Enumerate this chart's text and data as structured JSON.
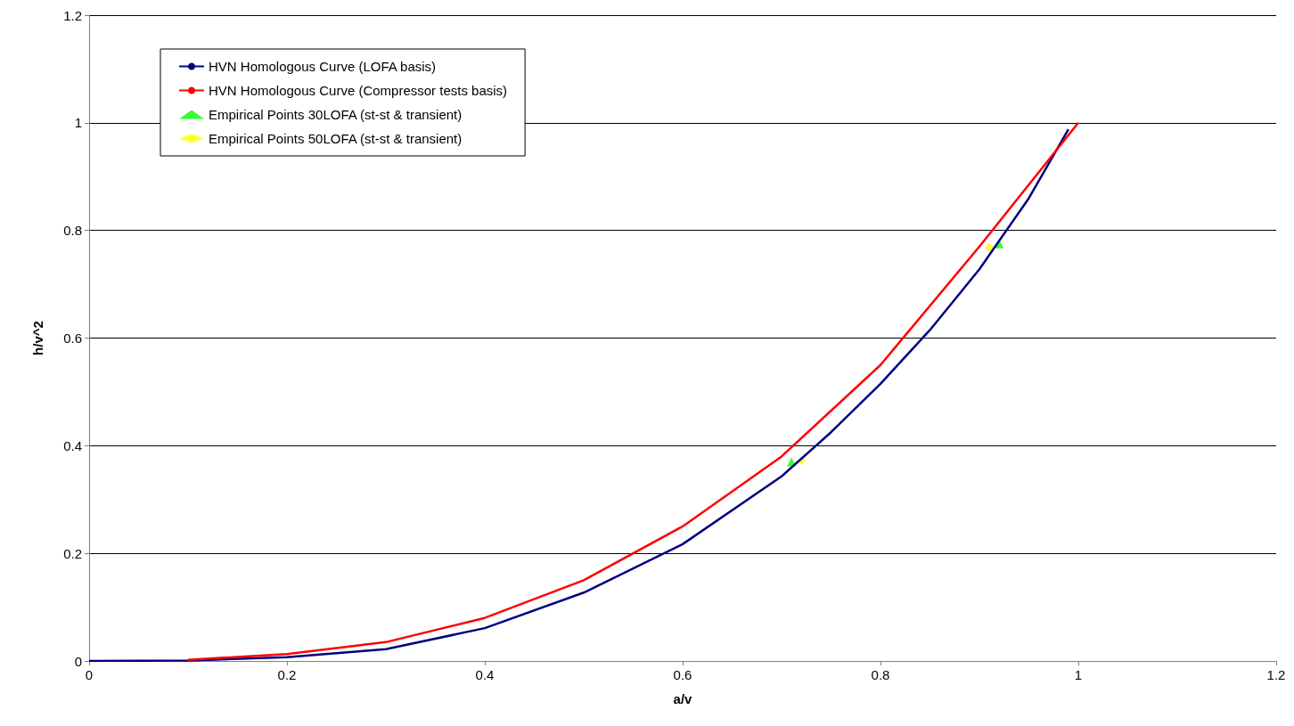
{
  "chart_data": {
    "type": "line",
    "xlabel": "a/v",
    "ylabel": "h/v^2",
    "xlim": [
      0,
      1.2
    ],
    "xticks": [
      0,
      0.2,
      0.4,
      0.6,
      0.8,
      1,
      1.2
    ],
    "ylim": [
      0,
      1.2
    ],
    "yticks": [
      0,
      0.2,
      0.4,
      0.6,
      0.8,
      1,
      1.2
    ],
    "grid": "y",
    "legend": "top left",
    "series": [
      {
        "name": "HVN Homologous Curve (LOFA basis)",
        "color": "#000080",
        "marker": "none",
        "x": [
          0,
          0.1,
          0.2,
          0.3,
          0.4,
          0.5,
          0.6,
          0.7,
          0.75,
          0.8,
          0.85,
          0.9,
          0.95,
          0.99
        ],
        "values": [
          0,
          0.001,
          0.007,
          0.022,
          0.061,
          0.127,
          0.217,
          0.343,
          0.425,
          0.515,
          0.615,
          0.728,
          0.86,
          0.988
        ]
      },
      {
        "name": "HVN Homologous Curve (Compressor tests basis)",
        "color": "#ff0000",
        "marker": "none",
        "x": [
          0.1,
          0.2,
          0.3,
          0.4,
          0.5,
          0.6,
          0.7,
          0.8,
          0.9,
          1
        ],
        "values": [
          0.002,
          0.013,
          0.035,
          0.08,
          0.15,
          0.25,
          0.38,
          0.55,
          0.77,
          1
        ]
      },
      {
        "name": "Empirical Points 30LOFA (st-st & transient)",
        "type": "scatter",
        "color": "#00ff00",
        "marker": "triangle",
        "x": [
          0.71,
          0.92
        ],
        "values": [
          0.37,
          0.775
        ]
      },
      {
        "name": "Empirical Points 50LOFA (st-st & transient)",
        "type": "scatter",
        "color": "#ffff00",
        "marker": "diamond",
        "x": [
          0.72,
          0.91
        ],
        "values": [
          0.372,
          0.768
        ]
      }
    ]
  }
}
